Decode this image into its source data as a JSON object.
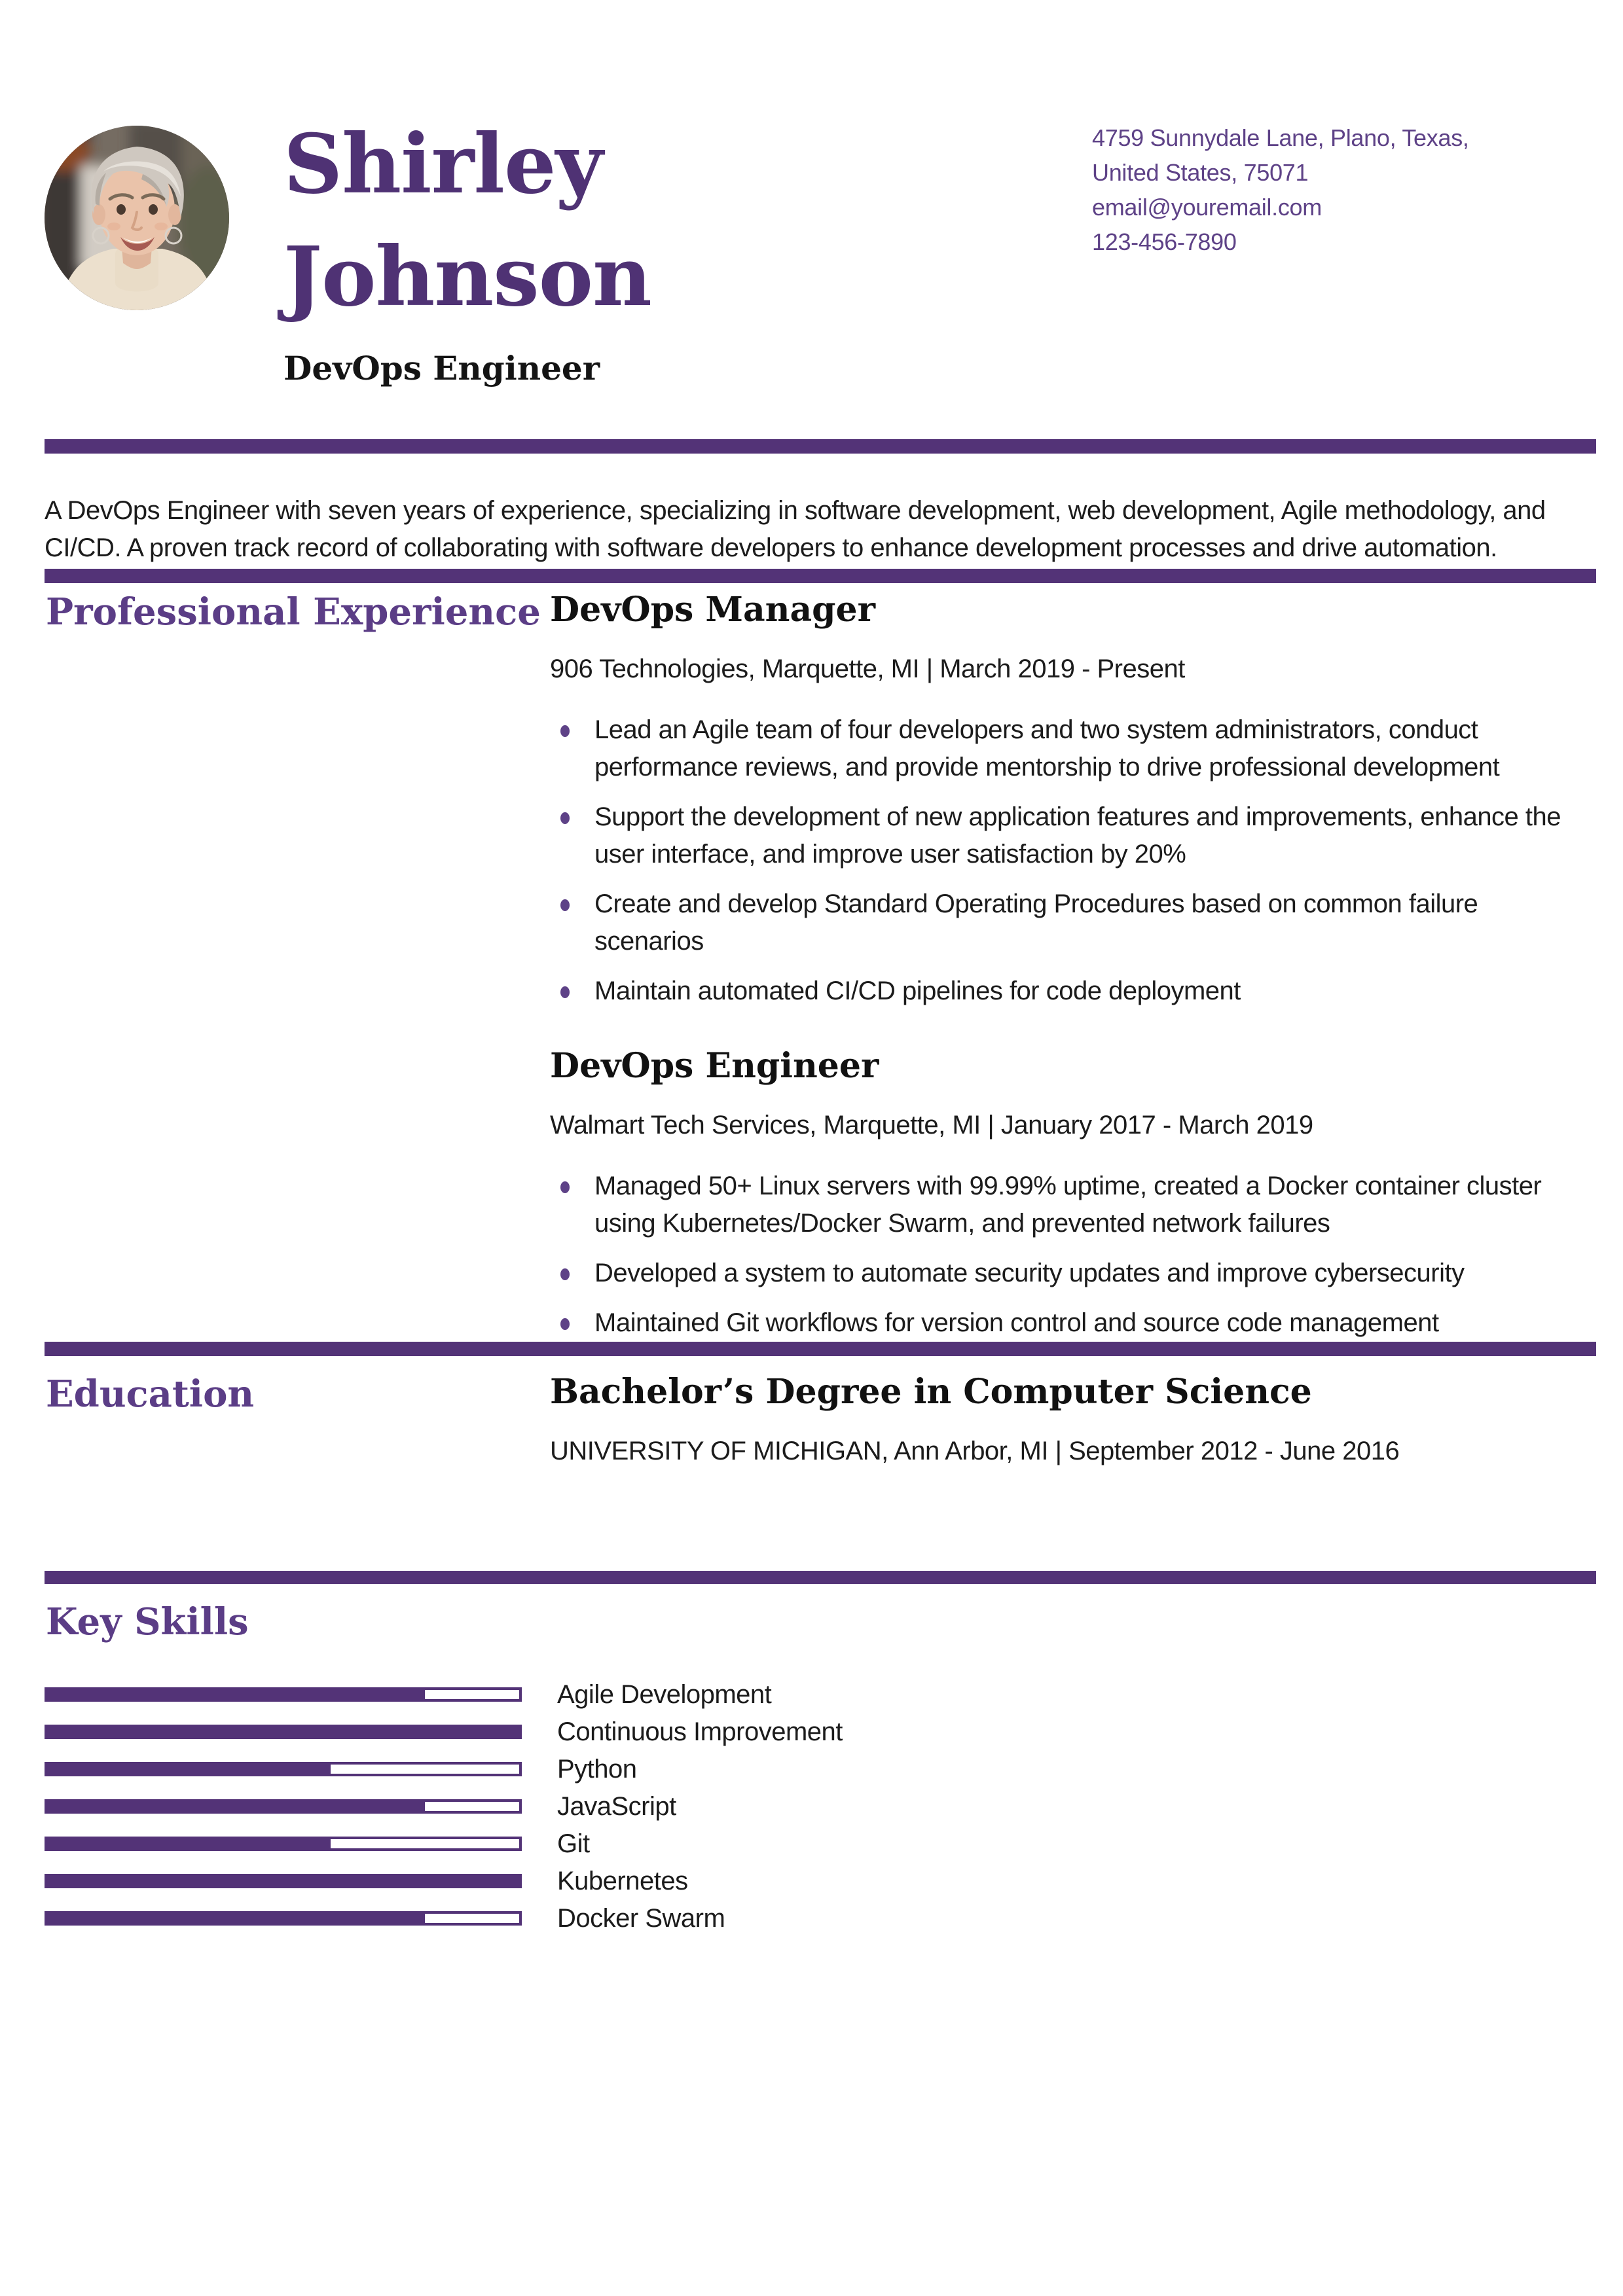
{
  "header": {
    "name_line1": "Shirley",
    "name_line2": "Johnson",
    "role": "DevOps Engineer",
    "contact": {
      "address_line1": "4759 Sunnydale Lane, Plano, Texas,",
      "address_line2": "United States, 75071",
      "email": "email@youremail.com",
      "phone": "123-456-7890"
    },
    "photo": "portrait-of-woman-short-gray-hair"
  },
  "summary": "A DevOps Engineer with seven years of experience, specializing in software development, web development, Agile methodology, and CI/CD. A proven track record of collaborating with software developers to enhance development processes and drive automation.",
  "experience": {
    "heading": "Professional Experience",
    "jobs": [
      {
        "title": "DevOps Manager",
        "meta": "906 Technologies, Marquette, MI | March 2019 - Present",
        "bullets": [
          "Lead an Agile team of four developers and two system administrators, conduct performance reviews, and provide mentorship to drive professional development",
          "Support the development of new application features and improvements, enhance the user interface, and improve user satisfaction by 20%",
          "Create and develop Standard Operating Procedures based on common failure scenarios",
          "Maintain automated CI/CD pipelines for code deployment"
        ]
      },
      {
        "title": "DevOps Engineer",
        "meta": "Walmart Tech Services, Marquette, MI | January 2017 - March 2019",
        "bullets": [
          "Managed 50+ Linux servers with 99.99% uptime, created a Docker container cluster using Kubernetes/Docker Swarm, and prevented network failures",
          "Developed a system to automate security updates and improve cybersecurity",
          "Maintained Git workflows for version control and source code management"
        ]
      }
    ]
  },
  "education": {
    "heading": "Education",
    "degree": "Bachelor’s Degree in Computer Science",
    "meta": "UNIVERSITY OF MICHIGAN, Ann Arbor, MI | September 2012 - June 2016"
  },
  "skills": {
    "heading": "Key Skills",
    "items": [
      {
        "label": "Agile Development",
        "level": 0.8
      },
      {
        "label": "Continuous Improvement",
        "level": 1
      },
      {
        "label": "Python",
        "level": 0.6
      },
      {
        "label": "JavaScript",
        "level": 0.8
      },
      {
        "label": "Git",
        "level": 0.6
      },
      {
        "label": "Kubernetes",
        "level": 1
      },
      {
        "label": "Docker Swarm",
        "level": 0.8
      }
    ]
  },
  "colors": {
    "accent": "#533377",
    "name": "#4f3274",
    "section_heading": "#5b3d86",
    "contact_text": "#5e4287",
    "body_text": "#1c1c1c"
  }
}
